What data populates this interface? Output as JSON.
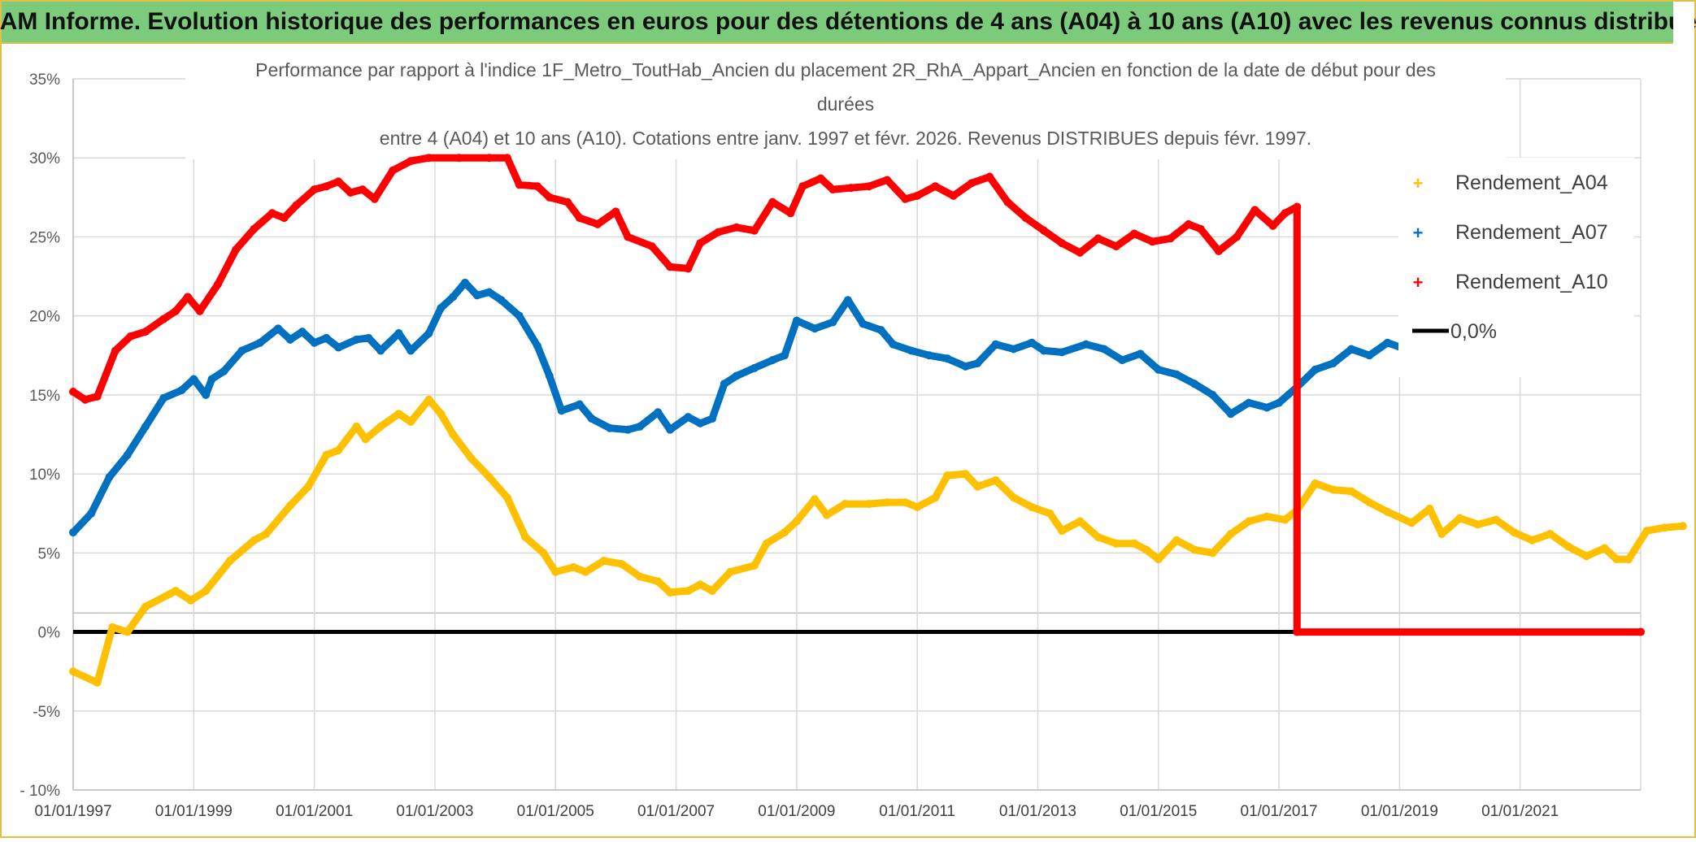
{
  "header": {
    "title": "ADAM Informe. Evolution historique des performances en euros pour des détentions de 4 ans (A04) à 10 ans (A10) avec les revenus connus distribués"
  },
  "colors": {
    "banner_bg": "#7ccb7c",
    "border": "#e2c046",
    "A04": "#ffc000",
    "A07": "#0070c0",
    "A10": "#ff0000",
    "zero": "#000000",
    "grid": "#d9d9d9"
  },
  "chart_data": {
    "type": "line",
    "title_lines": [
      "Performance par rapport à l'indice 1F_Metro_ToutHab_Ancien  du placement 2R_RhA_Appart_Ancien en fonction de la date de début pour des",
      "durées",
      "entre 4 (A04) et 10 ans (A10). Cotations entre janv. 1997 et févr. 2026. Revenus DISTRIBUES depuis févr. 1997."
    ],
    "xlabel": "",
    "ylabel": "",
    "x_range": [
      1997.0,
      2023.0
    ],
    "ylim": [
      -10,
      35
    ],
    "y_ticks": [
      -10,
      -5,
      0,
      5,
      10,
      15,
      20,
      25,
      30,
      35
    ],
    "y_tick_labels": [
      "- 10%",
      "-5%",
      "0%",
      "5%",
      "10%",
      "15%",
      "20%",
      "25%",
      "30%",
      "35%"
    ],
    "x_ticks": [
      1997,
      1999,
      2001,
      2003,
      2005,
      2007,
      2009,
      2011,
      2013,
      2015,
      2017,
      2019,
      2021
    ],
    "x_tick_labels": [
      "01/01/1997",
      "01/01/1999",
      "01/01/2001",
      "01/01/2003",
      "01/01/2005",
      "01/01/2007",
      "01/01/2009",
      "01/01/2011",
      "01/01/2013",
      "01/01/2015",
      "01/01/2017",
      "01/01/2019",
      "01/01/2021"
    ],
    "grid": true,
    "legend_position": "right",
    "series": [
      {
        "name": "Rendement_A04",
        "key": "A04",
        "points": [
          [
            1997.0,
            -2.5
          ],
          [
            1997.4,
            -3.2
          ],
          [
            1997.65,
            0.3
          ],
          [
            1997.9,
            0.0
          ],
          [
            1998.2,
            1.6
          ],
          [
            1998.7,
            2.6
          ],
          [
            1998.95,
            2.0
          ],
          [
            1999.2,
            2.6
          ],
          [
            1999.6,
            4.5
          ],
          [
            2000.0,
            5.8
          ],
          [
            2000.2,
            6.2
          ],
          [
            2000.6,
            8.0
          ],
          [
            2000.9,
            9.2
          ],
          [
            2001.2,
            11.2
          ],
          [
            2001.4,
            11.5
          ],
          [
            2001.7,
            13.0
          ],
          [
            2001.85,
            12.2
          ],
          [
            2002.1,
            13.0
          ],
          [
            2002.4,
            13.8
          ],
          [
            2002.6,
            13.3
          ],
          [
            2002.9,
            14.7
          ],
          [
            2003.1,
            13.8
          ],
          [
            2003.3,
            12.5
          ],
          [
            2003.6,
            11.0
          ],
          [
            2003.9,
            9.8
          ],
          [
            2004.2,
            8.5
          ],
          [
            2004.5,
            6.0
          ],
          [
            2004.8,
            5.0
          ],
          [
            2005.0,
            3.8
          ],
          [
            2005.3,
            4.1
          ],
          [
            2005.5,
            3.8
          ],
          [
            2005.8,
            4.5
          ],
          [
            2006.1,
            4.3
          ],
          [
            2006.4,
            3.5
          ],
          [
            2006.7,
            3.2
          ],
          [
            2006.9,
            2.5
          ],
          [
            2007.2,
            2.6
          ],
          [
            2007.4,
            3.0
          ],
          [
            2007.6,
            2.6
          ],
          [
            2007.9,
            3.8
          ],
          [
            2008.3,
            4.2
          ],
          [
            2008.5,
            5.6
          ],
          [
            2008.8,
            6.3
          ],
          [
            2009.0,
            7.0
          ],
          [
            2009.3,
            8.4
          ],
          [
            2009.5,
            7.4
          ],
          [
            2009.8,
            8.1
          ],
          [
            2010.2,
            8.1
          ],
          [
            2010.5,
            8.2
          ],
          [
            2010.8,
            8.2
          ],
          [
            2011.0,
            7.9
          ],
          [
            2011.3,
            8.5
          ],
          [
            2011.5,
            9.9
          ],
          [
            2011.8,
            10.0
          ],
          [
            2012.0,
            9.2
          ],
          [
            2012.3,
            9.6
          ],
          [
            2012.6,
            8.5
          ],
          [
            2012.9,
            7.9
          ],
          [
            2013.2,
            7.5
          ],
          [
            2013.4,
            6.4
          ],
          [
            2013.7,
            7.0
          ],
          [
            2014.0,
            6.0
          ],
          [
            2014.3,
            5.6
          ],
          [
            2014.6,
            5.6
          ],
          [
            2014.8,
            5.2
          ],
          [
            2015.0,
            4.6
          ],
          [
            2015.3,
            5.8
          ],
          [
            2015.6,
            5.2
          ],
          [
            2015.9,
            5.0
          ],
          [
            2016.2,
            6.2
          ],
          [
            2016.5,
            7.0
          ],
          [
            2016.8,
            7.3
          ],
          [
            2017.1,
            7.1
          ],
          [
            2017.3,
            7.7
          ],
          [
            2017.6,
            9.4
          ],
          [
            2017.9,
            9.0
          ],
          [
            2018.2,
            8.9
          ],
          [
            2018.5,
            8.2
          ],
          [
            2018.8,
            7.6
          ],
          [
            2019.2,
            6.9
          ],
          [
            2019.5,
            7.8
          ],
          [
            2019.7,
            6.2
          ],
          [
            2020.0,
            7.2
          ],
          [
            2020.3,
            6.8
          ],
          [
            2020.6,
            7.1
          ],
          [
            2020.9,
            6.3
          ],
          [
            2021.2,
            5.8
          ],
          [
            2021.5,
            6.2
          ],
          [
            2021.8,
            5.4
          ],
          [
            2022.1,
            4.8
          ],
          [
            2022.4,
            5.3
          ],
          [
            2022.6,
            4.6
          ],
          [
            2022.8,
            4.6
          ],
          [
            2023.1,
            6.4
          ],
          [
            2023.4,
            6.6
          ],
          [
            2023.7,
            6.7
          ]
        ]
      },
      {
        "name": "Rendement_A07",
        "key": "A07",
        "points": [
          [
            1997.0,
            6.3
          ],
          [
            1997.3,
            7.5
          ],
          [
            1997.6,
            9.8
          ],
          [
            1997.9,
            11.2
          ],
          [
            1998.2,
            13.0
          ],
          [
            1998.5,
            14.8
          ],
          [
            1998.8,
            15.3
          ],
          [
            1999.0,
            16.0
          ],
          [
            1999.2,
            15.0
          ],
          [
            1999.3,
            16.0
          ],
          [
            1999.5,
            16.5
          ],
          [
            1999.8,
            17.8
          ],
          [
            2000.1,
            18.3
          ],
          [
            2000.4,
            19.2
          ],
          [
            2000.6,
            18.5
          ],
          [
            2000.8,
            19.0
          ],
          [
            2001.0,
            18.3
          ],
          [
            2001.2,
            18.6
          ],
          [
            2001.4,
            18.0
          ],
          [
            2001.7,
            18.5
          ],
          [
            2001.9,
            18.6
          ],
          [
            2002.1,
            17.8
          ],
          [
            2002.4,
            18.9
          ],
          [
            2002.6,
            17.8
          ],
          [
            2002.9,
            18.9
          ],
          [
            2003.1,
            20.5
          ],
          [
            2003.3,
            21.2
          ],
          [
            2003.5,
            22.1
          ],
          [
            2003.7,
            21.3
          ],
          [
            2003.9,
            21.5
          ],
          [
            2004.1,
            21.0
          ],
          [
            2004.4,
            20.0
          ],
          [
            2004.7,
            18.1
          ],
          [
            2004.9,
            16.2
          ],
          [
            2005.1,
            14.0
          ],
          [
            2005.4,
            14.4
          ],
          [
            2005.6,
            13.5
          ],
          [
            2005.9,
            12.9
          ],
          [
            2006.2,
            12.8
          ],
          [
            2006.4,
            13.0
          ],
          [
            2006.7,
            13.9
          ],
          [
            2006.9,
            12.8
          ],
          [
            2007.2,
            13.6
          ],
          [
            2007.4,
            13.2
          ],
          [
            2007.6,
            13.5
          ],
          [
            2007.8,
            15.7
          ],
          [
            2008.0,
            16.2
          ],
          [
            2008.3,
            16.7
          ],
          [
            2008.6,
            17.2
          ],
          [
            2008.8,
            17.5
          ],
          [
            2009.0,
            19.7
          ],
          [
            2009.3,
            19.2
          ],
          [
            2009.6,
            19.6
          ],
          [
            2009.85,
            21.0
          ],
          [
            2010.1,
            19.5
          ],
          [
            2010.4,
            19.1
          ],
          [
            2010.6,
            18.2
          ],
          [
            2010.9,
            17.8
          ],
          [
            2011.2,
            17.5
          ],
          [
            2011.5,
            17.3
          ],
          [
            2011.8,
            16.8
          ],
          [
            2012.0,
            17.0
          ],
          [
            2012.3,
            18.2
          ],
          [
            2012.6,
            17.9
          ],
          [
            2012.9,
            18.3
          ],
          [
            2013.1,
            17.8
          ],
          [
            2013.4,
            17.7
          ],
          [
            2013.8,
            18.2
          ],
          [
            2014.1,
            17.9
          ],
          [
            2014.4,
            17.2
          ],
          [
            2014.7,
            17.6
          ],
          [
            2015.0,
            16.6
          ],
          [
            2015.3,
            16.3
          ],
          [
            2015.6,
            15.7
          ],
          [
            2015.9,
            15.0
          ],
          [
            2016.2,
            13.8
          ],
          [
            2016.5,
            14.5
          ],
          [
            2016.8,
            14.2
          ],
          [
            2017.0,
            14.5
          ],
          [
            2017.3,
            15.5
          ],
          [
            2017.6,
            16.6
          ],
          [
            2017.9,
            17.0
          ],
          [
            2018.2,
            17.9
          ],
          [
            2018.5,
            17.5
          ],
          [
            2018.8,
            18.3
          ],
          [
            2019.1,
            17.9
          ],
          [
            2019.3,
            17.2
          ],
          [
            2019.6,
            18.4
          ],
          [
            2019.9,
            18.1
          ],
          [
            2020.2,
            18.2
          ],
          [
            2020.4,
            17.8
          ]
        ]
      },
      {
        "name": "Rendement_A10",
        "key": "A10",
        "points": [
          [
            1997.0,
            15.2
          ],
          [
            1997.2,
            14.7
          ],
          [
            1997.4,
            14.9
          ],
          [
            1997.7,
            17.8
          ],
          [
            1997.95,
            18.7
          ],
          [
            1998.2,
            19.0
          ],
          [
            1998.5,
            19.8
          ],
          [
            1998.7,
            20.3
          ],
          [
            1998.9,
            21.2
          ],
          [
            1999.1,
            20.3
          ],
          [
            1999.4,
            22.0
          ],
          [
            1999.7,
            24.2
          ],
          [
            2000.0,
            25.5
          ],
          [
            2000.3,
            26.5
          ],
          [
            2000.5,
            26.2
          ],
          [
            2000.7,
            27.0
          ],
          [
            2001.0,
            28.0
          ],
          [
            2001.2,
            28.2
          ],
          [
            2001.4,
            28.5
          ],
          [
            2001.6,
            27.8
          ],
          [
            2001.8,
            28.0
          ],
          [
            2002.0,
            27.4
          ],
          [
            2002.3,
            29.2
          ],
          [
            2002.6,
            29.8
          ],
          [
            2002.9,
            30.0
          ],
          [
            2003.4,
            30.0
          ],
          [
            2003.9,
            30.0
          ],
          [
            2004.2,
            30.0
          ],
          [
            2004.4,
            28.3
          ],
          [
            2004.7,
            28.2
          ],
          [
            2004.9,
            27.5
          ],
          [
            2005.2,
            27.2
          ],
          [
            2005.4,
            26.2
          ],
          [
            2005.7,
            25.8
          ],
          [
            2006.0,
            26.6
          ],
          [
            2006.2,
            25.0
          ],
          [
            2006.6,
            24.4
          ],
          [
            2006.9,
            23.1
          ],
          [
            2007.2,
            23.0
          ],
          [
            2007.4,
            24.6
          ],
          [
            2007.7,
            25.3
          ],
          [
            2008.0,
            25.6
          ],
          [
            2008.3,
            25.4
          ],
          [
            2008.6,
            27.2
          ],
          [
            2008.9,
            26.5
          ],
          [
            2009.1,
            28.2
          ],
          [
            2009.4,
            28.7
          ],
          [
            2009.6,
            28.0
          ],
          [
            2009.9,
            28.1
          ],
          [
            2010.2,
            28.2
          ],
          [
            2010.5,
            28.6
          ],
          [
            2010.8,
            27.4
          ],
          [
            2011.0,
            27.6
          ],
          [
            2011.3,
            28.2
          ],
          [
            2011.6,
            27.6
          ],
          [
            2011.9,
            28.4
          ],
          [
            2012.2,
            28.8
          ],
          [
            2012.5,
            27.2
          ],
          [
            2012.8,
            26.2
          ],
          [
            2013.1,
            25.4
          ],
          [
            2013.4,
            24.6
          ],
          [
            2013.7,
            24.0
          ],
          [
            2014.0,
            24.9
          ],
          [
            2014.3,
            24.4
          ],
          [
            2014.6,
            25.2
          ],
          [
            2014.9,
            24.7
          ],
          [
            2015.2,
            24.9
          ],
          [
            2015.5,
            25.8
          ],
          [
            2015.7,
            25.5
          ],
          [
            2016.0,
            24.1
          ],
          [
            2016.3,
            25.0
          ],
          [
            2016.6,
            26.7
          ],
          [
            2016.9,
            25.7
          ],
          [
            2017.1,
            26.5
          ],
          [
            2017.3,
            26.9
          ],
          [
            2017.3,
            0.0
          ],
          [
            2023.0,
            0.0
          ]
        ]
      }
    ],
    "zero_line": {
      "name": "0,0%",
      "key": "zero",
      "points": [
        [
          1997.0,
          0.0
        ],
        [
          2023.0,
          0.0
        ]
      ]
    }
  }
}
